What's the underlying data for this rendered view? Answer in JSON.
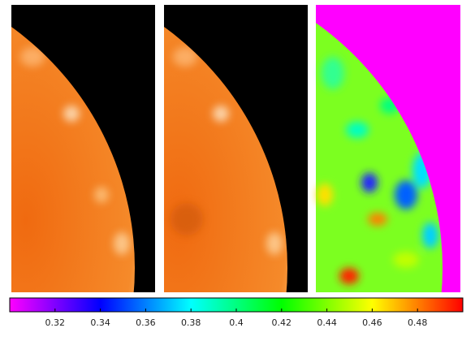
{
  "colorbar": {
    "lim": [
      0.3,
      0.5
    ],
    "ticks": [
      0.32,
      0.34,
      0.36,
      0.38,
      0.4,
      0.42,
      0.44,
      0.46,
      0.48
    ],
    "colors": [
      "#ff00ff",
      "#0000ff",
      "#00ffff",
      "#00ff00",
      "#ffff00",
      "#ff0000"
    ]
  }
}
